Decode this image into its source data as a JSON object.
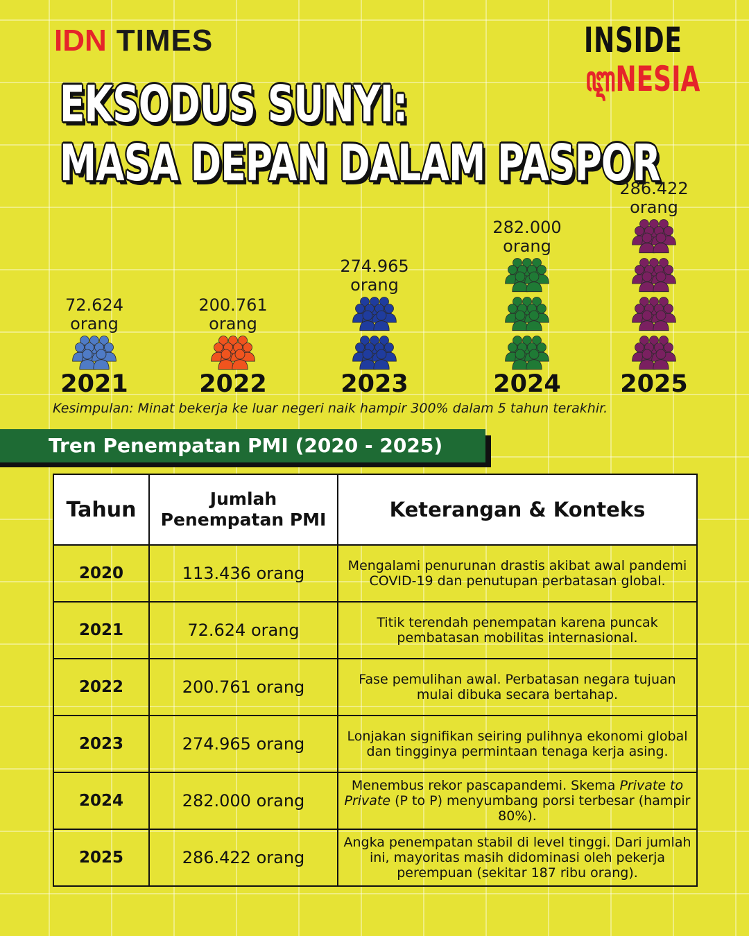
{
  "brand": {
    "idn": "IDN",
    "times": "TIMES"
  },
  "logo": {
    "top": "INSIDE",
    "bottom": "ꦆNESIA"
  },
  "title": {
    "line1": "EKSODUS SUNYI:",
    "line2": "MASA DEPAN DALAM PASPOR"
  },
  "chart_data": {
    "type": "pictograph",
    "categories": [
      "2021",
      "2022",
      "2023",
      "2024",
      "2025"
    ],
    "values": [
      72624,
      200761,
      274965,
      282000,
      286422
    ],
    "value_labels": [
      "72.624",
      "200.761",
      "274.965",
      "282.000",
      "286.422"
    ],
    "unit": "orang",
    "icon_counts": [
      1,
      1,
      2,
      3,
      4
    ],
    "colors": [
      "#4f7bc6",
      "#f0541e",
      "#1f3c9e",
      "#1f7a35",
      "#7a2060"
    ],
    "icon": "people-group-icon"
  },
  "conclusion": "Kesimpulan: Minat bekerja ke luar negeri naik hampir 300% dalam 5 tahun terakhir.",
  "section_title": "Tren Penempatan PMI (2020 - 2025)",
  "table": {
    "headers": {
      "year": "Tahun",
      "count_l1": "Jumlah",
      "count_l2": "Penempatan PMI",
      "note": "Keterangan & Konteks"
    },
    "rows": [
      {
        "year": "2020",
        "count": "113.436 orang",
        "note": "Mengalami penurunan drastis akibat awal pandemi COVID-19 dan penutupan perbatasan global."
      },
      {
        "year": "2021",
        "count": "72.624 orang",
        "note": "Titik terendah penempatan karena puncak pembatasan mobilitas internasional."
      },
      {
        "year": "2022",
        "count": "200.761 orang",
        "note": "Fase pemulihan awal. Perbatasan negara tujuan mulai dibuka secara bertahap."
      },
      {
        "year": "2023",
        "count": "274.965 orang",
        "note": "Lonjakan signifikan seiring pulihnya ekonomi global dan tingginya permintaan tenaga kerja asing."
      },
      {
        "year": "2024",
        "count": "282.000 orang",
        "note_pre": "Menembus rekor pascapandemi. Skema ",
        "note_em": "Private to Private",
        "note_post": " (P to P) menyumbang porsi terbesar (hampir 80%)."
      },
      {
        "year": "2025",
        "count": "286.422 orang",
        "note": "Angka penempatan stabil di level tinggi. Dari jumlah ini, mayoritas masih didominasi oleh pekerja perempuan (sekitar 187 ribu orang)."
      }
    ]
  }
}
